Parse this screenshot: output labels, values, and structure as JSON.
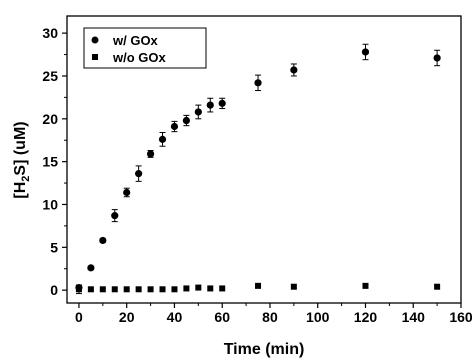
{
  "chart_data": {
    "type": "scatter",
    "xlabel": "Time (min)",
    "ylabel_parts": [
      "[H",
      "2",
      "S] (uM)"
    ],
    "xlim": [
      -5,
      160
    ],
    "ylim": [
      -1.5,
      32
    ],
    "x_ticks": [
      0,
      20,
      40,
      60,
      80,
      100,
      120,
      140,
      160
    ],
    "y_ticks": [
      0,
      5,
      10,
      15,
      20,
      25,
      30
    ],
    "legend_position": "top-left",
    "series": [
      {
        "name": "w/ GOx",
        "marker": "circle",
        "x": [
          0,
          5,
          10,
          15,
          20,
          25,
          30,
          35,
          40,
          45,
          50,
          55,
          60,
          75,
          90,
          120,
          150
        ],
        "y": [
          0.3,
          2.6,
          5.8,
          8.7,
          11.4,
          13.6,
          15.9,
          17.6,
          19.1,
          19.8,
          20.8,
          21.6,
          21.8,
          24.2,
          25.7,
          27.8,
          27.1
        ],
        "err": [
          0.3,
          0.2,
          0.2,
          0.7,
          0.5,
          0.9,
          0.4,
          0.8,
          0.6,
          0.6,
          0.8,
          0.8,
          0.6,
          0.9,
          0.7,
          0.9,
          0.9
        ]
      },
      {
        "name": "w/o GOx",
        "marker": "square",
        "x": [
          0,
          5,
          10,
          15,
          20,
          25,
          30,
          35,
          40,
          45,
          50,
          55,
          60,
          75,
          90,
          120,
          150
        ],
        "y": [
          0.1,
          0.1,
          0.1,
          0.1,
          0.1,
          0.1,
          0.1,
          0.1,
          0.1,
          0.2,
          0.3,
          0.2,
          0.2,
          0.5,
          0.4,
          0.5,
          0.4
        ],
        "err": [
          0.5,
          0,
          0,
          0,
          0,
          0,
          0,
          0,
          0,
          0,
          0,
          0,
          0,
          0,
          0,
          0,
          0
        ]
      }
    ]
  }
}
